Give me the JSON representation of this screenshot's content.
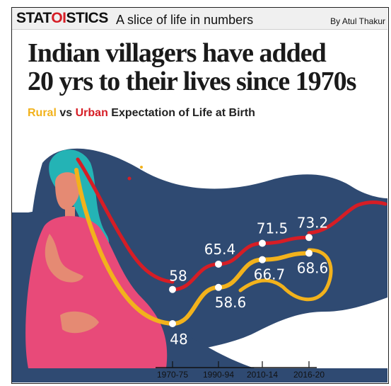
{
  "header": {
    "brand_part1": "STAT",
    "brand_part2": "OI",
    "brand_part3": "STICS",
    "tagline": "A slice of life in numbers",
    "byline": "By Atul Thakur"
  },
  "headline": {
    "line1": "Indian villagers have added",
    "line2": "20 yrs to their lives since 1970s"
  },
  "subtitle": {
    "rural": "Rural",
    "vs": "vs",
    "urban": "Urban",
    "rest": "Expectation of Life at Birth"
  },
  "colors": {
    "rural": "#f2b21c",
    "urban": "#d61d25",
    "background_blob": "#2f4a72",
    "figure_dress": "#e84a79"
  },
  "chart_data": {
    "type": "line",
    "title": "Rural vs Urban Expectation of Life at Birth",
    "categories": [
      "1970-75",
      "1990-94",
      "2010-14",
      "2016-20"
    ],
    "series": [
      {
        "name": "Rural",
        "values": [
          48,
          58.6,
          66.7,
          68.6
        ]
      },
      {
        "name": "Urban",
        "values": [
          58,
          65.4,
          71.5,
          73.2
        ]
      }
    ],
    "xlabel": "",
    "ylabel": "",
    "grid": false,
    "legend": "in subtitle"
  }
}
